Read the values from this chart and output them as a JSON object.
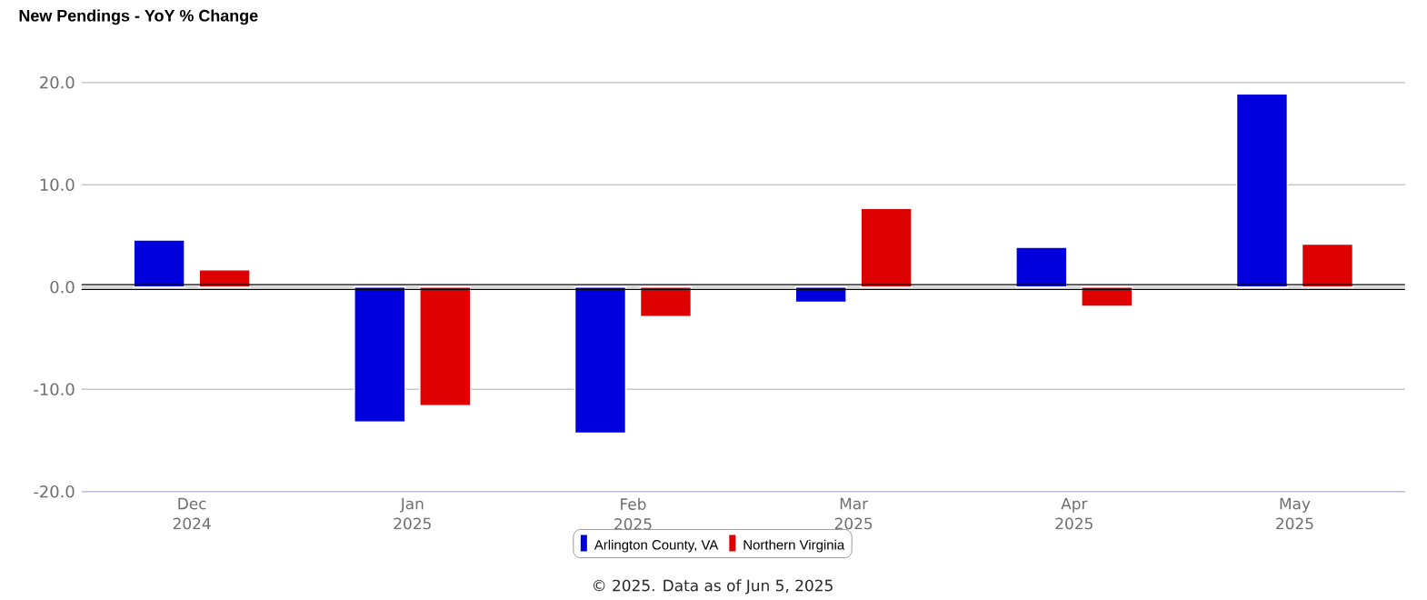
{
  "chart_data": {
    "type": "bar",
    "title": "New Pendings - YoY % Change",
    "categories": [
      "Dec 2024",
      "Jan 2025",
      "Feb 2025",
      "Mar 2025",
      "Apr 2025",
      "May 2025"
    ],
    "series": [
      {
        "name": "Arlington County, VA",
        "color": "#0000dd",
        "values": [
          4.6,
          -13.2,
          -14.3,
          -1.5,
          3.9,
          18.9
        ]
      },
      {
        "name": "Northern Virginia",
        "color": "#dd0000",
        "values": [
          1.7,
          -11.6,
          -2.9,
          7.7,
          -1.9,
          4.2
        ]
      }
    ],
    "ylim": [
      -20,
      20
    ],
    "yticks": [
      {
        "value": -20,
        "label": "-20.0"
      },
      {
        "value": -10,
        "label": "-10.0"
      },
      {
        "value": 0,
        "label": "0.0"
      },
      {
        "value": 10,
        "label": "10.0"
      },
      {
        "value": 20,
        "label": "20.0"
      }
    ],
    "grid": "y",
    "legend": "bottom",
    "annotations": [
      "© 2025. Data as of Jun 5, 2025"
    ]
  }
}
